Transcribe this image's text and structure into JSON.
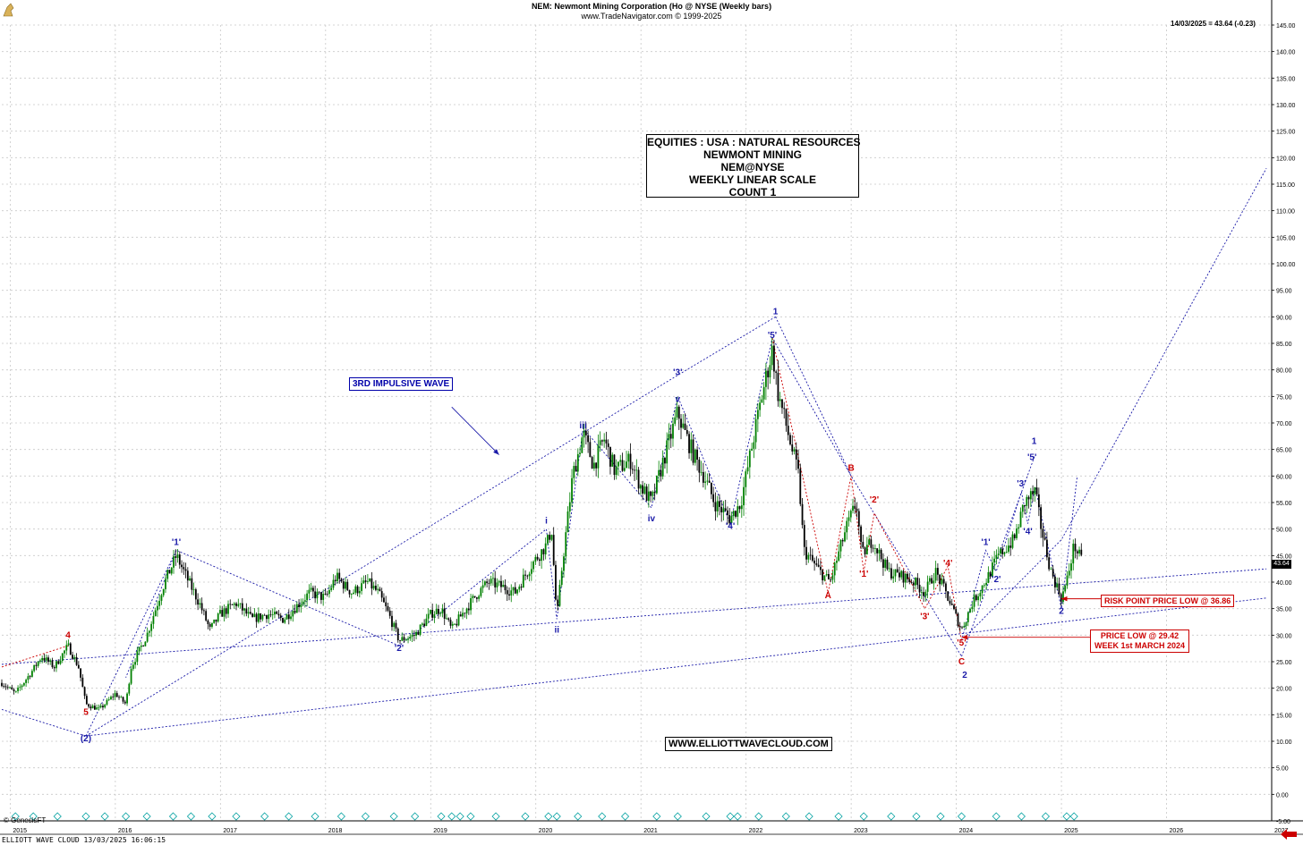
{
  "header": {
    "title": "NEM:  Newmont Mining Corporation (Ho @ NYSE  (Weekly bars)",
    "subtitle": "www.TradeNavigator.com © 1999-2025",
    "last_value": "14/03/2025 = 43.64 (-0.23)"
  },
  "infobox": {
    "line1": "EQUITIES : USA : NATURAL RESOURCES",
    "line2": "NEWMONT MINING",
    "line3": "NEM@NYSE",
    "line4": "WEEKLY LINEAR SCALE",
    "line5": "COUNT 1"
  },
  "annotations": {
    "impulsive": "3RD IMPULSIVE WAVE",
    "website": "WWW.ELLIOTTWAVECLOUD.COM",
    "risk": "RISK POINT PRICE LOW @ 36.86",
    "price_low_1": "PRICE LOW @ 29.42",
    "price_low_2": "WEEK 1st MARCH 2024",
    "price_tag": "43.64"
  },
  "footer": {
    "source": "ELLIOTT WAVE CLOUD   13/03/2025 16:06:15",
    "genesis": "© GenesisFT"
  },
  "colors": {
    "up": "#008000",
    "down": "#000000",
    "blue_wave": "#1a1aa8",
    "red_wave": "#cc0000",
    "grid": "#c8c8c8"
  },
  "chart_data": {
    "type": "candlestick",
    "x_axis": {
      "range": [
        2014.92,
        2027.0
      ],
      "ticks": [
        "2015",
        "2016",
        "2017",
        "2018",
        "2019",
        "2020",
        "2021",
        "2022",
        "2023",
        "2024",
        "2025",
        "2026",
        "2027"
      ]
    },
    "y_axis": {
      "range": [
        -5,
        145
      ],
      "ticks": [
        "-5.00",
        "0.00",
        "5.00",
        "10.00",
        "15.00",
        "20.00",
        "25.00",
        "30.00",
        "35.00",
        "40.00",
        "45.00",
        "50.00",
        "55.00",
        "60.00",
        "65.00",
        "70.00",
        "75.00",
        "80.00",
        "85.00",
        "90.00",
        "95.00",
        "100.00",
        "105.00",
        "110.00",
        "115.00",
        "120.00",
        "125.00",
        "130.00",
        "135.00",
        "140.00",
        "145.00"
      ]
    },
    "grid": true,
    "price_path": [
      [
        2014.92,
        21
      ],
      [
        2015.05,
        19
      ],
      [
        2015.2,
        23
      ],
      [
        2015.3,
        26
      ],
      [
        2015.42,
        24
      ],
      [
        2015.55,
        28
      ],
      [
        2015.65,
        24
      ],
      [
        2015.72,
        17
      ],
      [
        2015.85,
        16
      ],
      [
        2016.0,
        19
      ],
      [
        2016.1,
        17
      ],
      [
        2016.15,
        24
      ],
      [
        2016.3,
        30
      ],
      [
        2016.45,
        39
      ],
      [
        2016.58,
        45
      ],
      [
        2016.7,
        40
      ],
      [
        2016.8,
        36
      ],
      [
        2016.9,
        31
      ],
      [
        2017.0,
        34
      ],
      [
        2017.15,
        36
      ],
      [
        2017.3,
        33
      ],
      [
        2017.45,
        34
      ],
      [
        2017.6,
        33
      ],
      [
        2017.7,
        35
      ],
      [
        2017.85,
        38
      ],
      [
        2018.0,
        37
      ],
      [
        2018.1,
        41
      ],
      [
        2018.25,
        38
      ],
      [
        2018.4,
        40
      ],
      [
        2018.5,
        38
      ],
      [
        2018.6,
        34
      ],
      [
        2018.7,
        29
      ],
      [
        2018.85,
        30
      ],
      [
        2019.0,
        34
      ],
      [
        2019.1,
        35
      ],
      [
        2019.2,
        31
      ],
      [
        2019.3,
        34
      ],
      [
        2019.45,
        38
      ],
      [
        2019.55,
        40
      ],
      [
        2019.7,
        39
      ],
      [
        2019.8,
        38
      ],
      [
        2019.95,
        43
      ],
      [
        2020.1,
        47
      ],
      [
        2020.15,
        50
      ],
      [
        2020.2,
        33
      ],
      [
        2020.25,
        43
      ],
      [
        2020.35,
        60
      ],
      [
        2020.45,
        68
      ],
      [
        2020.55,
        62
      ],
      [
        2020.65,
        67
      ],
      [
        2020.75,
        61
      ],
      [
        2020.9,
        63
      ],
      [
        2021.0,
        58
      ],
      [
        2021.1,
        55
      ],
      [
        2021.2,
        62
      ],
      [
        2021.35,
        72
      ],
      [
        2021.42,
        68
      ],
      [
        2021.5,
        64
      ],
      [
        2021.6,
        60
      ],
      [
        2021.7,
        55
      ],
      [
        2021.85,
        52
      ],
      [
        2021.95,
        55
      ],
      [
        2022.05,
        65
      ],
      [
        2022.15,
        75
      ],
      [
        2022.25,
        84
      ],
      [
        2022.3,
        76
      ],
      [
        2022.4,
        68
      ],
      [
        2022.5,
        60
      ],
      [
        2022.55,
        46
      ],
      [
        2022.7,
        42
      ],
      [
        2022.8,
        40
      ],
      [
        2022.95,
        50
      ],
      [
        2023.05,
        55
      ],
      [
        2023.1,
        45
      ],
      [
        2023.2,
        48
      ],
      [
        2023.35,
        42
      ],
      [
        2023.5,
        41
      ],
      [
        2023.6,
        40
      ],
      [
        2023.7,
        38
      ],
      [
        2023.8,
        42
      ],
      [
        2023.9,
        38
      ],
      [
        2024.05,
        31
      ],
      [
        2024.15,
        36
      ],
      [
        2024.3,
        41
      ],
      [
        2024.4,
        45
      ],
      [
        2024.55,
        48
      ],
      [
        2024.65,
        55
      ],
      [
        2024.75,
        57
      ],
      [
        2024.8,
        51
      ],
      [
        2024.9,
        42
      ],
      [
        2025.0,
        37
      ],
      [
        2025.05,
        40
      ],
      [
        2025.12,
        47
      ],
      [
        2025.2,
        43.64
      ]
    ],
    "wave_labels": [
      {
        "text": "4",
        "x": 2015.55,
        "y": 29.5,
        "color": "red"
      },
      {
        "text": "5",
        "x": 2015.72,
        "y": 15,
        "color": "red"
      },
      {
        "text": "(2)",
        "x": 2015.72,
        "y": 10,
        "color": "blue"
      },
      {
        "text": "'1'",
        "x": 2016.58,
        "y": 47,
        "color": "blue"
      },
      {
        "text": "'2'",
        "x": 2018.7,
        "y": 27,
        "color": "blue"
      },
      {
        "text": "i",
        "x": 2020.1,
        "y": 51,
        "color": "blue"
      },
      {
        "text": "ii",
        "x": 2020.2,
        "y": 30.5,
        "color": "blue"
      },
      {
        "text": "iii",
        "x": 2020.45,
        "y": 69,
        "color": "blue"
      },
      {
        "text": "iv",
        "x": 2021.1,
        "y": 51.5,
        "color": "blue"
      },
      {
        "text": "v",
        "x": 2021.35,
        "y": 74,
        "color": "blue"
      },
      {
        "text": "'3'",
        "x": 2021.35,
        "y": 79,
        "color": "blue"
      },
      {
        "text": "'4'",
        "x": 2021.85,
        "y": 50,
        "color": "blue"
      },
      {
        "text": "'5'",
        "x": 2022.25,
        "y": 86,
        "color": "blue"
      },
      {
        "text": "1",
        "x": 2022.28,
        "y": 90.5,
        "color": "blue"
      },
      {
        "text": "A",
        "x": 2022.78,
        "y": 37,
        "color": "red"
      },
      {
        "text": "B",
        "x": 2023.0,
        "y": 61,
        "color": "red"
      },
      {
        "text": "'1'",
        "x": 2023.12,
        "y": 41,
        "color": "red"
      },
      {
        "text": "'2'",
        "x": 2023.22,
        "y": 55,
        "color": "red"
      },
      {
        "text": "'3'",
        "x": 2023.7,
        "y": 33,
        "color": "red"
      },
      {
        "text": "'4'",
        "x": 2023.92,
        "y": 43,
        "color": "red"
      },
      {
        "text": "'5'",
        "x": 2024.05,
        "y": 28,
        "color": "red"
      },
      {
        "text": "C",
        "x": 2024.05,
        "y": 24.5,
        "color": "red"
      },
      {
        "text": "2",
        "x": 2024.08,
        "y": 22,
        "color": "blue"
      },
      {
        "text": "'1'",
        "x": 2024.28,
        "y": 47,
        "color": "blue"
      },
      {
        "text": "'2'",
        "x": 2024.38,
        "y": 40,
        "color": "blue"
      },
      {
        "text": "'3'",
        "x": 2024.62,
        "y": 58,
        "color": "blue"
      },
      {
        "text": "'4'",
        "x": 2024.68,
        "y": 49,
        "color": "blue"
      },
      {
        "text": "'5'",
        "x": 2024.72,
        "y": 63,
        "color": "blue"
      },
      {
        "text": "1",
        "x": 2024.74,
        "y": 66,
        "color": "blue"
      },
      {
        "text": "2",
        "x": 2025.0,
        "y": 34,
        "color": "blue"
      }
    ],
    "wave_lines_blue": [
      [
        [
          2015.72,
          11
        ],
        [
          2016.58,
          46
        ],
        [
          2018.7,
          28
        ],
        [
          2020.1,
          50
        ],
        [
          2020.2,
          33
        ],
        [
          2020.45,
          69
        ],
        [
          2021.1,
          54
        ],
        [
          2021.35,
          75
        ],
        [
          2021.85,
          51
        ],
        [
          2022.25,
          86
        ],
        [
          2023.0,
          60
        ],
        [
          2024.05,
          26
        ]
      ],
      [
        [
          2015.72,
          11
        ],
        [
          2021.35,
          79
        ],
        [
          2022.28,
          90
        ]
      ],
      [
        [
          2016.58,
          46
        ],
        [
          2016.1,
          22
        ]
      ],
      [
        [
          2022.28,
          90
        ],
        [
          2023.0,
          60
        ]
      ],
      [
        [
          2024.05,
          29
        ],
        [
          2024.28,
          46
        ],
        [
          2024.38,
          42
        ],
        [
          2024.62,
          57
        ],
        [
          2024.68,
          51
        ],
        [
          2024.75,
          58
        ],
        [
          2025.0,
          35
        ],
        [
          2025.15,
          60
        ]
      ],
      [
        [
          2024.05,
          26
        ],
        [
          2024.75,
          64
        ]
      ],
      [
        [
          2024.05,
          29
        ],
        [
          2025.0,
          48
        ],
        [
          2026.95,
          118
        ]
      ]
    ],
    "wave_lines_red": [
      [
        [
          2014.92,
          24
        ],
        [
          2015.55,
          28
        ]
      ],
      [
        [
          2022.25,
          86
        ],
        [
          2022.78,
          38
        ],
        [
          2023.0,
          60
        ],
        [
          2023.12,
          42
        ],
        [
          2023.22,
          53
        ],
        [
          2023.7,
          35
        ],
        [
          2023.92,
          43
        ],
        [
          2024.05,
          29
        ]
      ]
    ],
    "trend_lines_blue": [
      [
        [
          2014.92,
          16
        ],
        [
          2015.72,
          11
        ],
        [
          2026.95,
          37
        ]
      ],
      [
        [
          2014.92,
          24.5
        ],
        [
          2026.95,
          42.5
        ]
      ]
    ],
    "arrows": [
      {
        "from": [
          2019.2,
          73
        ],
        "to": [
          2019.65,
          64
        ],
        "color": "blue"
      },
      {
        "from": [
          2025.55,
          36.86
        ],
        "to": [
          2025.0,
          36.86
        ],
        "color": "red"
      },
      {
        "from": [
          2025.4,
          29.6
        ],
        "to": [
          2024.05,
          29.6
        ],
        "color": "red"
      }
    ]
  }
}
